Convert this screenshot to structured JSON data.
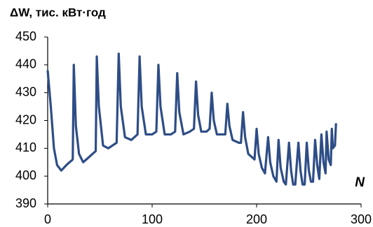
{
  "chart_data": {
    "type": "line",
    "title": "ΔW, тис. кВт·год",
    "x_label": "N",
    "x": [
      0,
      3,
      6,
      9,
      13,
      18,
      24,
      25,
      27,
      30,
      34,
      40,
      46,
      47,
      49,
      53,
      58,
      66,
      68,
      70,
      74,
      80,
      86,
      88,
      90,
      94,
      100,
      104,
      106,
      108,
      112,
      118,
      122,
      124,
      126,
      130,
      136,
      140,
      142,
      144,
      147,
      152,
      155,
      157,
      159,
      162,
      168,
      170,
      172,
      174,
      177,
      183,
      185,
      187,
      189,
      192,
      198,
      200,
      202,
      205,
      208,
      211,
      213,
      216,
      219,
      221,
      223,
      226,
      228,
      231,
      233,
      235,
      237,
      240,
      242,
      244,
      246,
      248,
      250,
      252,
      254,
      256,
      258,
      260,
      262,
      264,
      266,
      267,
      269,
      271,
      272,
      273,
      275,
      276
    ],
    "series": [
      {
        "color": "#2e4d86",
        "values": [
          438,
          425,
          410,
          404,
          402,
          404,
          406,
          440,
          418,
          408,
          405,
          407,
          409,
          443,
          425,
          411,
          410,
          412,
          444,
          425,
          414,
          413,
          415,
          443,
          425,
          415,
          415,
          416,
          440,
          425,
          415,
          415,
          416,
          437,
          423,
          415,
          416,
          417,
          434,
          422,
          416,
          416,
          417,
          430,
          420,
          415,
          415,
          415,
          426,
          418,
          413,
          412,
          412,
          423,
          414,
          408,
          406,
          417,
          408,
          403,
          401,
          414,
          405,
          400,
          398,
          413,
          403,
          398,
          397,
          412,
          402,
          397,
          397,
          412,
          402,
          397,
          397,
          412,
          402,
          398,
          398,
          413,
          404,
          399,
          415,
          405,
          401,
          416,
          406,
          404,
          417,
          410,
          411,
          419
        ]
      }
    ],
    "xlim": [
      0,
      300
    ],
    "xticks": [
      0,
      100,
      200,
      300
    ],
    "ylim": [
      390,
      450
    ],
    "yticks": [
      390,
      400,
      410,
      420,
      430,
      440,
      450
    ],
    "grid": false
  }
}
